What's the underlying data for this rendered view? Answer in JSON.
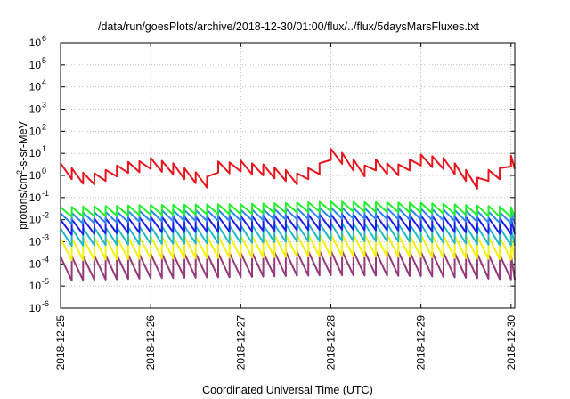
{
  "chart_data": {
    "type": "line",
    "title": "/data/run/goesPlots/archive/2018-12-30/01:00/flux/../flux/5daysMarsFluxes.txt",
    "xlabel": "Coordinated Universal Time (UTC)",
    "ylabel": "protons/cm2-s-sr-MeV",
    "ylabel_parts": {
      "base": "protons/cm",
      "sup": "2",
      "rest": "-s-sr-MeV"
    },
    "yscale": "log",
    "ylim": [
      "1e-6",
      "1e6"
    ],
    "y_ticks": [
      {
        "base": "10",
        "exp": "6"
      },
      {
        "base": "10",
        "exp": "5"
      },
      {
        "base": "10",
        "exp": "4"
      },
      {
        "base": "10",
        "exp": "3"
      },
      {
        "base": "10",
        "exp": "2"
      },
      {
        "base": "10",
        "exp": "1"
      },
      {
        "base": "10",
        "exp": "0"
      },
      {
        "base": "10",
        "exp": "-1"
      },
      {
        "base": "10",
        "exp": "-2"
      },
      {
        "base": "10",
        "exp": "-3"
      },
      {
        "base": "10",
        "exp": "-4"
      },
      {
        "base": "10",
        "exp": "-5"
      },
      {
        "base": "10",
        "exp": "-6"
      }
    ],
    "x_ticks": [
      "2018-12-25",
      "2018-12-26",
      "2018-12-27",
      "2018-12-28",
      "2018-12-29",
      "2018-12-30"
    ],
    "xlim": [
      "2018-12-25T00:00",
      "2018-12-30T01:00"
    ],
    "grid": true,
    "legend": "none",
    "sawtooth_period_hours": 3,
    "series": [
      {
        "color": "#e8141c",
        "x": [
          "2018-12-25T00:00",
          "2018-12-25T03:00",
          "2018-12-25T06:00",
          "2018-12-25T09:00",
          "2018-12-25T12:00",
          "2018-12-25T15:00",
          "2018-12-25T18:00",
          "2018-12-25T21:00",
          "2018-12-26T00:00",
          "2018-12-26T03:00",
          "2018-12-26T06:00",
          "2018-12-26T09:00",
          "2018-12-26T12:00",
          "2018-12-26T15:00",
          "2018-12-26T18:00",
          "2018-12-26T21:00",
          "2018-12-27T00:00",
          "2018-12-27T03:00",
          "2018-12-27T06:00",
          "2018-12-27T09:00",
          "2018-12-27T12:00",
          "2018-12-27T15:00",
          "2018-12-27T18:00",
          "2018-12-27T21:00",
          "2018-12-28T00:00",
          "2018-12-28T03:00",
          "2018-12-28T06:00",
          "2018-12-28T09:00",
          "2018-12-28T12:00",
          "2018-12-28T15:00",
          "2018-12-28T18:00",
          "2018-12-28T21:00",
          "2018-12-29T00:00",
          "2018-12-29T03:00",
          "2018-12-29T06:00",
          "2018-12-29T09:00",
          "2018-12-29T12:00",
          "2018-12-29T15:00",
          "2018-12-29T18:00",
          "2018-12-29T21:00",
          "2018-12-30T00:00",
          "2018-12-30T01:00"
        ],
        "y": [
          2.0,
          1.2,
          0.75,
          0.7,
          1.0,
          1.6,
          2.3,
          2.5,
          3.5,
          2.6,
          2.0,
          1.2,
          0.8,
          0.5,
          2.4,
          2.2,
          2.7,
          2.0,
          1.8,
          1.3,
          1.0,
          0.7,
          1.2,
          2.0,
          9.0,
          6.0,
          3.0,
          1.6,
          3.0,
          2.0,
          1.8,
          3.0,
          5.0,
          4.2,
          3.5,
          2.0,
          1.0,
          0.45,
          1.0,
          1.2,
          4.5,
          3.5
        ],
        "ripple_decades": 0.5
      },
      {
        "color": "#22ee2c",
        "x": [
          "2018-12-25T00:00",
          "2018-12-26T00:00",
          "2018-12-27T00:00",
          "2018-12-28T00:00",
          "2018-12-29T00:00",
          "2018-12-30T00:00",
          "2018-12-30T01:00"
        ],
        "y": [
          0.022,
          0.028,
          0.03,
          0.04,
          0.035,
          0.022,
          0.022
        ],
        "ripple_decades": 0.45
      },
      {
        "color": "#2e86ee",
        "x": [
          "2018-12-25T00:00",
          "2018-12-26T00:00",
          "2018-12-27T00:00",
          "2018-12-28T00:00",
          "2018-12-29T00:00",
          "2018-12-30T00:00",
          "2018-12-30T01:00"
        ],
        "y": [
          0.011,
          0.015,
          0.016,
          0.02,
          0.018,
          0.012,
          0.012
        ],
        "ripple_decades": 0.5
      },
      {
        "color": "#1e1ee6",
        "x": [
          "2018-12-25T00:00",
          "2018-12-26T00:00",
          "2018-12-27T00:00",
          "2018-12-28T00:00",
          "2018-12-29T00:00",
          "2018-12-30T00:00",
          "2018-12-30T01:00"
        ],
        "y": [
          0.0045,
          0.006,
          0.0065,
          0.008,
          0.007,
          0.005,
          0.005
        ],
        "ripple_decades": 0.7
      },
      {
        "color": "#22b8c4",
        "x": [
          "2018-12-25T00:00",
          "2018-12-26T00:00",
          "2018-12-27T00:00",
          "2018-12-28T00:00",
          "2018-12-29T00:00",
          "2018-12-30T00:00",
          "2018-12-30T01:00"
        ],
        "y": [
          0.0016,
          0.002,
          0.0022,
          0.0028,
          0.0025,
          0.0017,
          0.0017
        ],
        "ripple_decades": 0.8
      },
      {
        "color": "#f3f00c",
        "x": [
          "2018-12-25T00:00",
          "2018-12-26T00:00",
          "2018-12-27T00:00",
          "2018-12-28T00:00",
          "2018-12-29T00:00",
          "2018-12-30T00:00",
          "2018-12-30T01:00"
        ],
        "y": [
          0.00045,
          0.00055,
          0.0006,
          0.0007,
          0.00065,
          0.0005,
          0.0005
        ],
        "ripple_decades": 1.0
      },
      {
        "color": "#96397a",
        "x": [
          "2018-12-25T00:00",
          "2018-12-26T00:00",
          "2018-12-27T00:00",
          "2018-12-28T00:00",
          "2018-12-29T00:00",
          "2018-12-30T00:00",
          "2018-12-30T01:00"
        ],
        "y": [
          6e-05,
          8e-05,
          9e-05,
          0.00011,
          0.0001,
          7e-05,
          7e-05
        ],
        "ripple_decades": 1.1
      }
    ]
  }
}
